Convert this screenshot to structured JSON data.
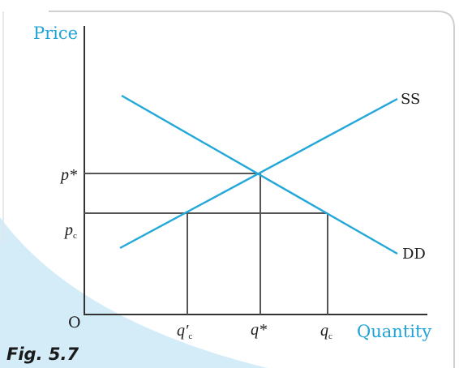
{
  "diagram": {
    "y_axis_label": "Price",
    "x_axis_label": "Quantity",
    "origin_label": "O",
    "supply_label": "SS",
    "demand_label": "DD",
    "p_star_label": "p*",
    "p_c_label": {
      "base": "p",
      "sub": "c"
    },
    "q_prime_c_label": {
      "base": "q′",
      "sub": "c"
    },
    "q_star_label": "q*",
    "q_c_label": {
      "base": "q",
      "sub": "c"
    },
    "caption": "Fig. 5.7"
  },
  "colors": {
    "curve": "#22a8d8",
    "axis_text": "#1fa3d6",
    "frame": "#cfcfcf",
    "panel_fill": "#d3ecf8",
    "axis": "#333333",
    "guides": "#555555",
    "text": "#1a1a1a"
  }
}
